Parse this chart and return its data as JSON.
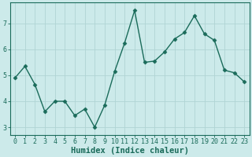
{
  "x": [
    0,
    1,
    2,
    3,
    4,
    5,
    6,
    7,
    8,
    9,
    10,
    11,
    12,
    13,
    14,
    15,
    16,
    17,
    18,
    19,
    20,
    21,
    22,
    23
  ],
  "y": [
    4.9,
    5.35,
    4.65,
    3.6,
    4.0,
    4.0,
    3.45,
    3.7,
    3.0,
    3.85,
    5.15,
    6.25,
    7.5,
    5.5,
    5.55,
    5.9,
    6.4,
    6.65,
    7.3,
    6.6,
    6.35,
    5.2,
    5.1,
    4.75
  ],
  "line_color": "#1a6b5a",
  "marker": "D",
  "marker_size": 2.5,
  "bg_color": "#cceaea",
  "grid_color": "#b0d4d4",
  "xlabel": "Humidex (Indice chaleur)",
  "ylabel": "",
  "xlim": [
    -0.5,
    23.5
  ],
  "ylim": [
    2.7,
    7.8
  ],
  "yticks": [
    3,
    4,
    5,
    6,
    7
  ],
  "xticks": [
    0,
    1,
    2,
    3,
    4,
    5,
    6,
    7,
    8,
    9,
    10,
    11,
    12,
    13,
    14,
    15,
    16,
    17,
    18,
    19,
    20,
    21,
    22,
    23
  ],
  "tick_fontsize": 6,
  "xlabel_fontsize": 7.5,
  "line_width": 1.0
}
